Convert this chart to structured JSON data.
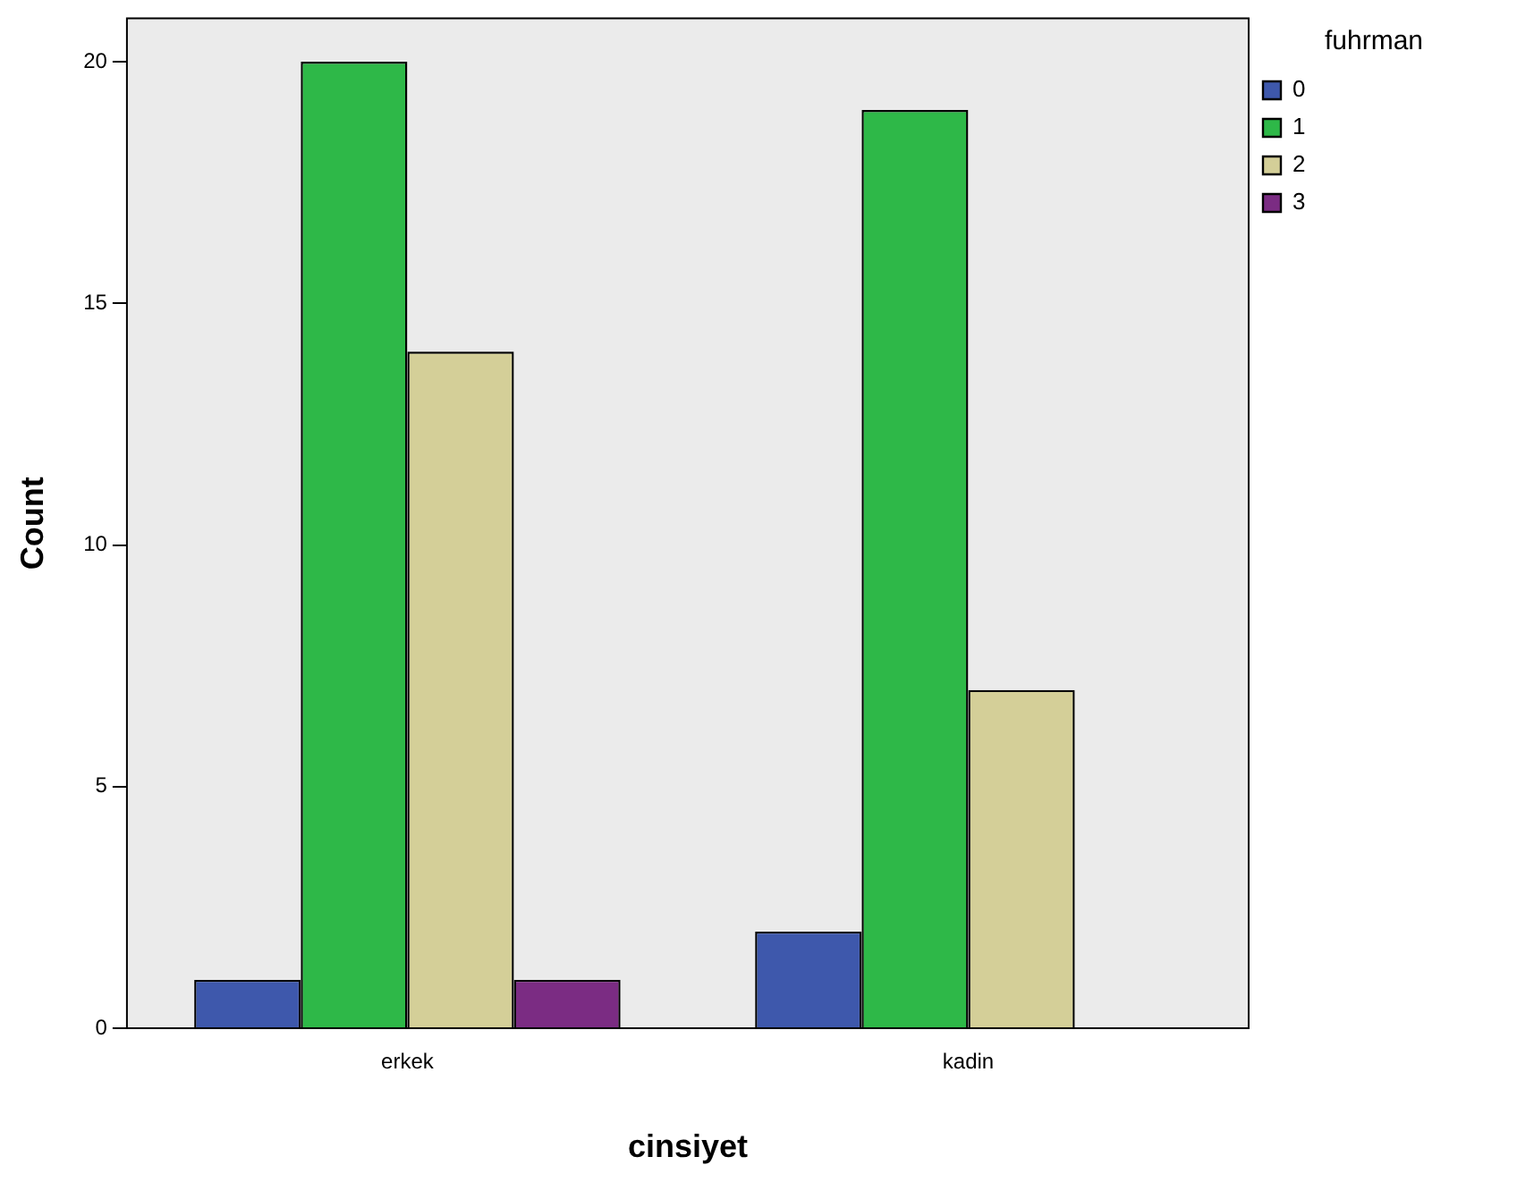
{
  "chart_data": {
    "type": "bar",
    "xlabel": "cinsiyet",
    "ylabel": "Count",
    "legend_title": "fuhrman",
    "categories": [
      "erkek",
      "kadin"
    ],
    "series": [
      {
        "name": "0",
        "color": "#3e58ac",
        "values": [
          1,
          2
        ]
      },
      {
        "name": "1",
        "color": "#2eb848",
        "values": [
          20,
          19
        ]
      },
      {
        "name": "2",
        "color": "#d4cf98",
        "values": [
          14,
          7
        ]
      },
      {
        "name": "3",
        "color": "#7b2c83",
        "values": [
          1,
          null
        ]
      }
    ],
    "ylim": [
      0,
      20.9
    ],
    "yticks": [
      0,
      5,
      10,
      15,
      20
    ],
    "grid": false,
    "legend": "right"
  }
}
